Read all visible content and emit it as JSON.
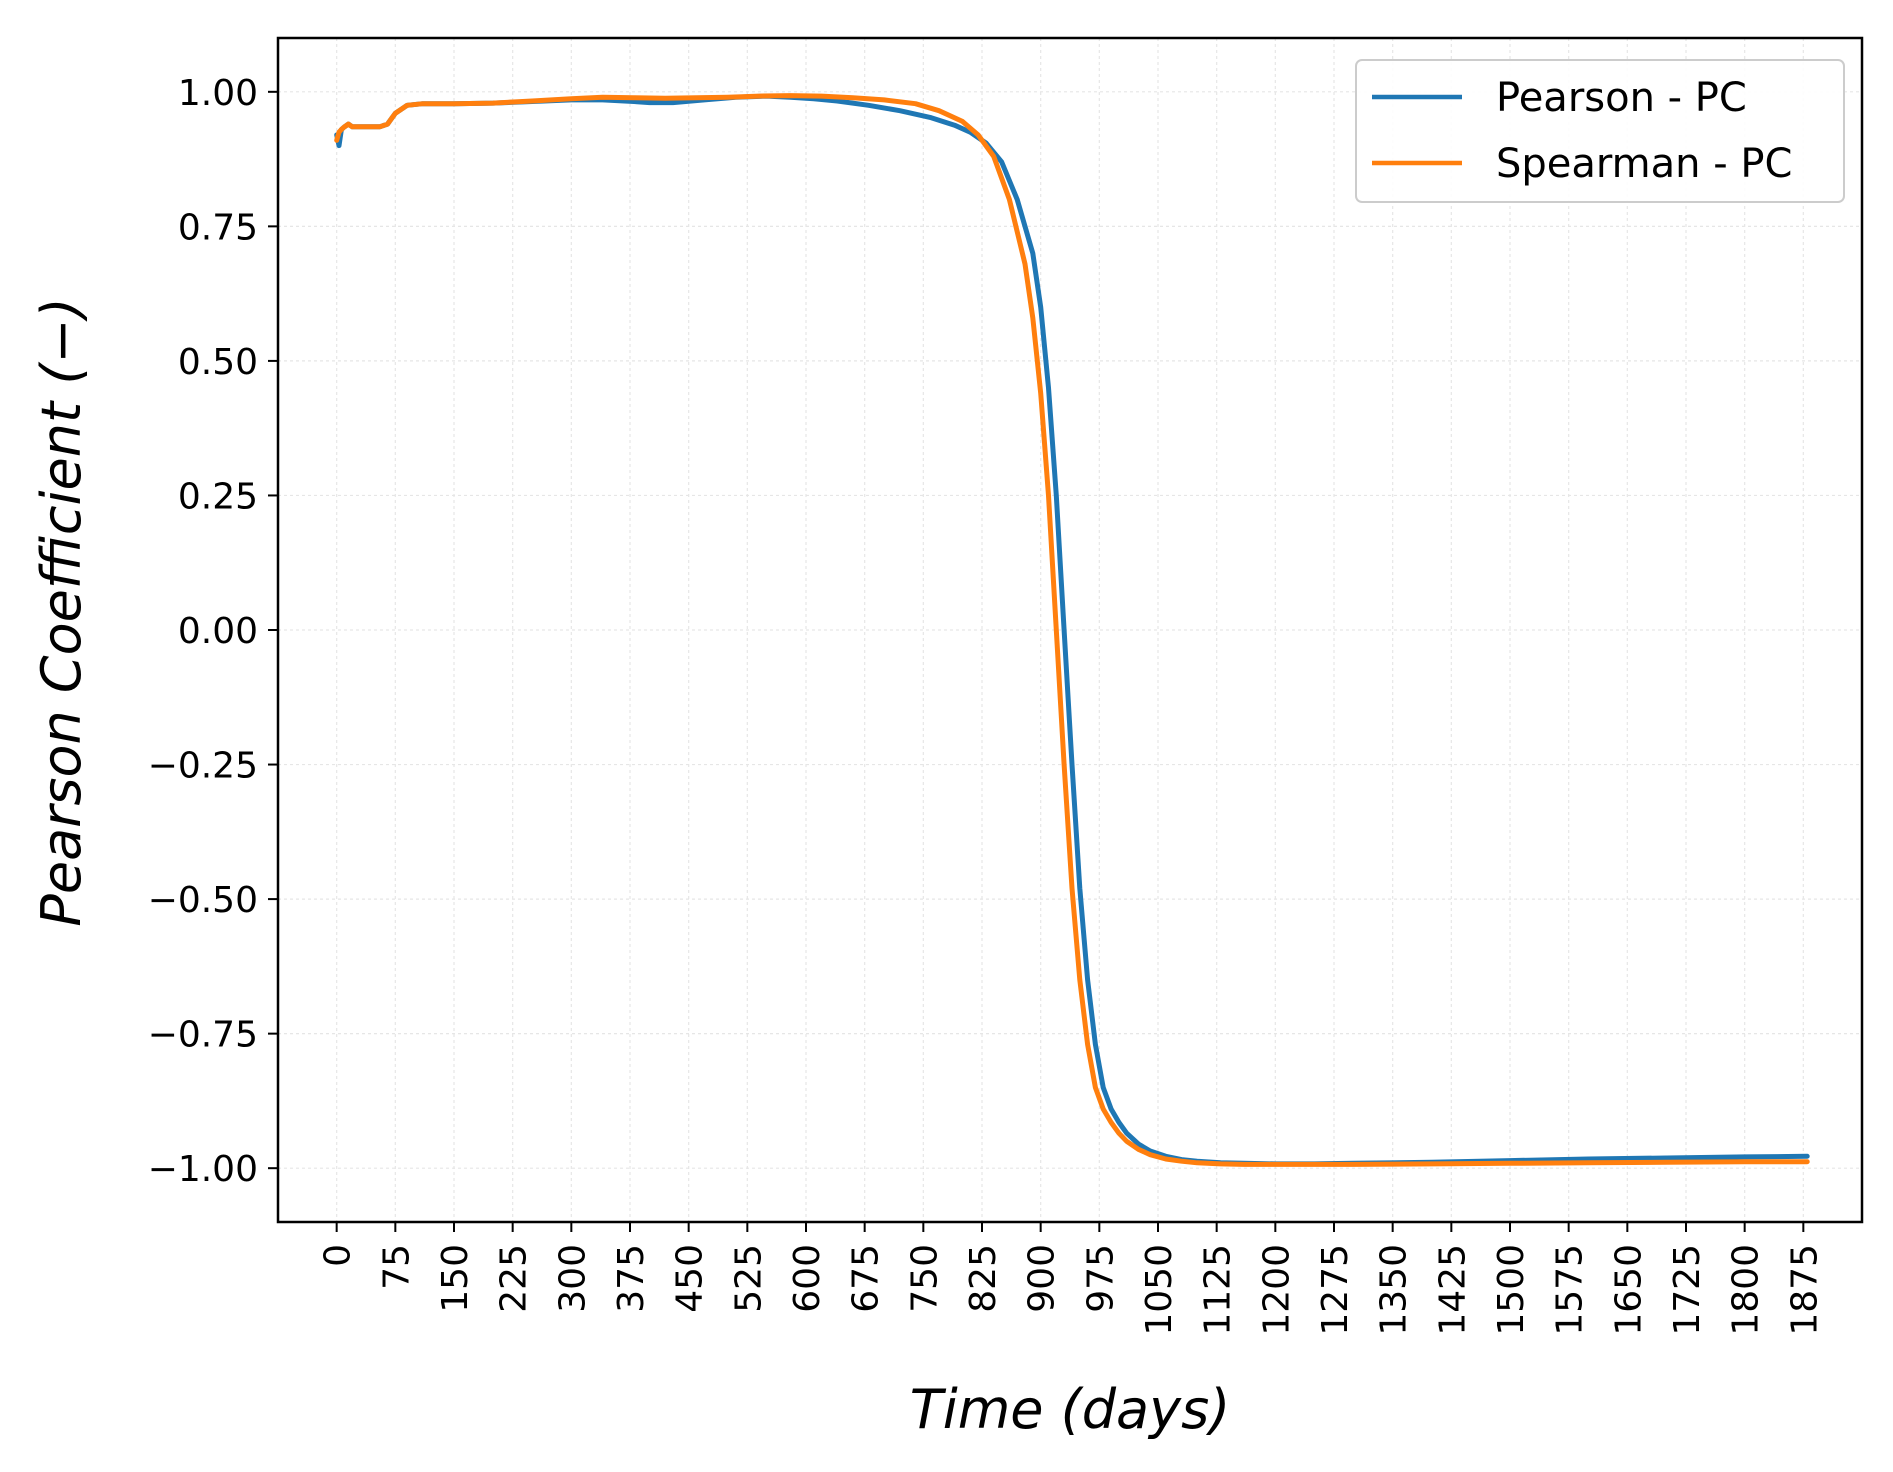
{
  "chart_data": {
    "type": "line",
    "title": "",
    "xlabel": "Time (days)",
    "ylabel": "Pearson Coefficient (−)",
    "xlim": [
      -75,
      1950
    ],
    "ylim": [
      -1.1,
      1.1
    ],
    "grid": true,
    "legend_position": "top-right",
    "x_ticks": [
      0,
      75,
      150,
      225,
      300,
      375,
      450,
      525,
      600,
      675,
      750,
      825,
      900,
      975,
      1050,
      1125,
      1200,
      1275,
      1350,
      1425,
      1500,
      1575,
      1650,
      1725,
      1800,
      1875
    ],
    "x_tick_labels": [
      "0",
      "75",
      "150",
      "225",
      "300",
      "375",
      "450",
      "525",
      "600",
      "675",
      "750",
      "825",
      "900",
      "975",
      "1050",
      "1125",
      "1200",
      "1275",
      "1350",
      "1425",
      "1500",
      "1575",
      "1650",
      "1725",
      "1800",
      "1875"
    ],
    "y_ticks": [
      1.0,
      0.75,
      0.5,
      0.25,
      0.0,
      -0.25,
      -0.5,
      -0.75,
      -1.0
    ],
    "y_tick_labels": [
      "1.00",
      "0.75",
      "0.50",
      "0.25",
      "0.00",
      "−0.25",
      "−0.50",
      "−0.75",
      "−1.00"
    ],
    "series": [
      {
        "name": "Pearson - PC",
        "color": "#1f77b4",
        "x": [
          0,
          3,
          6,
          10,
          15,
          20,
          30,
          45,
          55,
          65,
          75,
          90,
          110,
          150,
          200,
          250,
          300,
          340,
          380,
          400,
          430,
          470,
          510,
          550,
          580,
          610,
          640,
          680,
          720,
          760,
          790,
          810,
          830,
          850,
          870,
          890,
          900,
          910,
          920,
          930,
          940,
          950,
          960,
          970,
          980,
          990,
          1000,
          1010,
          1025,
          1040,
          1060,
          1080,
          1100,
          1130,
          1160,
          1200,
          1250,
          1300,
          1400,
          1500,
          1600,
          1700,
          1800,
          1880
        ],
        "y": [
          0.92,
          0.9,
          0.93,
          0.935,
          0.94,
          0.935,
          0.935,
          0.935,
          0.935,
          0.94,
          0.96,
          0.975,
          0.978,
          0.978,
          0.979,
          0.982,
          0.985,
          0.985,
          0.982,
          0.98,
          0.98,
          0.985,
          0.99,
          0.992,
          0.99,
          0.987,
          0.983,
          0.975,
          0.965,
          0.952,
          0.938,
          0.925,
          0.905,
          0.87,
          0.8,
          0.7,
          0.6,
          0.45,
          0.25,
          0.0,
          -0.25,
          -0.48,
          -0.65,
          -0.77,
          -0.85,
          -0.89,
          -0.915,
          -0.935,
          -0.955,
          -0.968,
          -0.978,
          -0.984,
          -0.987,
          -0.99,
          -0.991,
          -0.992,
          -0.992,
          -0.991,
          -0.989,
          -0.986,
          -0.983,
          -0.981,
          -0.979,
          -0.978
        ]
      },
      {
        "name": "Spearman - PC",
        "color": "#ff7f0e",
        "x": [
          0,
          3,
          6,
          10,
          15,
          20,
          30,
          45,
          55,
          65,
          75,
          90,
          110,
          150,
          200,
          250,
          300,
          340,
          380,
          420,
          460,
          500,
          540,
          580,
          620,
          660,
          700,
          740,
          770,
          800,
          820,
          840,
          860,
          880,
          890,
          900,
          910,
          920,
          930,
          940,
          950,
          960,
          970,
          980,
          990,
          1000,
          1010,
          1025,
          1040,
          1060,
          1080,
          1100,
          1130,
          1160,
          1200,
          1250,
          1300,
          1400,
          1500,
          1600,
          1700,
          1800,
          1880
        ],
        "y": [
          0.91,
          0.925,
          0.93,
          0.935,
          0.94,
          0.935,
          0.935,
          0.935,
          0.935,
          0.94,
          0.96,
          0.975,
          0.978,
          0.978,
          0.979,
          0.983,
          0.987,
          0.99,
          0.989,
          0.988,
          0.989,
          0.99,
          0.992,
          0.993,
          0.992,
          0.989,
          0.985,
          0.978,
          0.965,
          0.945,
          0.92,
          0.88,
          0.8,
          0.68,
          0.58,
          0.44,
          0.25,
          0.0,
          -0.25,
          -0.48,
          -0.65,
          -0.77,
          -0.85,
          -0.89,
          -0.915,
          -0.935,
          -0.95,
          -0.965,
          -0.975,
          -0.983,
          -0.987,
          -0.99,
          -0.992,
          -0.993,
          -0.993,
          -0.993,
          -0.993,
          -0.992,
          -0.991,
          -0.99,
          -0.989,
          -0.988,
          -0.988
        ]
      }
    ]
  }
}
